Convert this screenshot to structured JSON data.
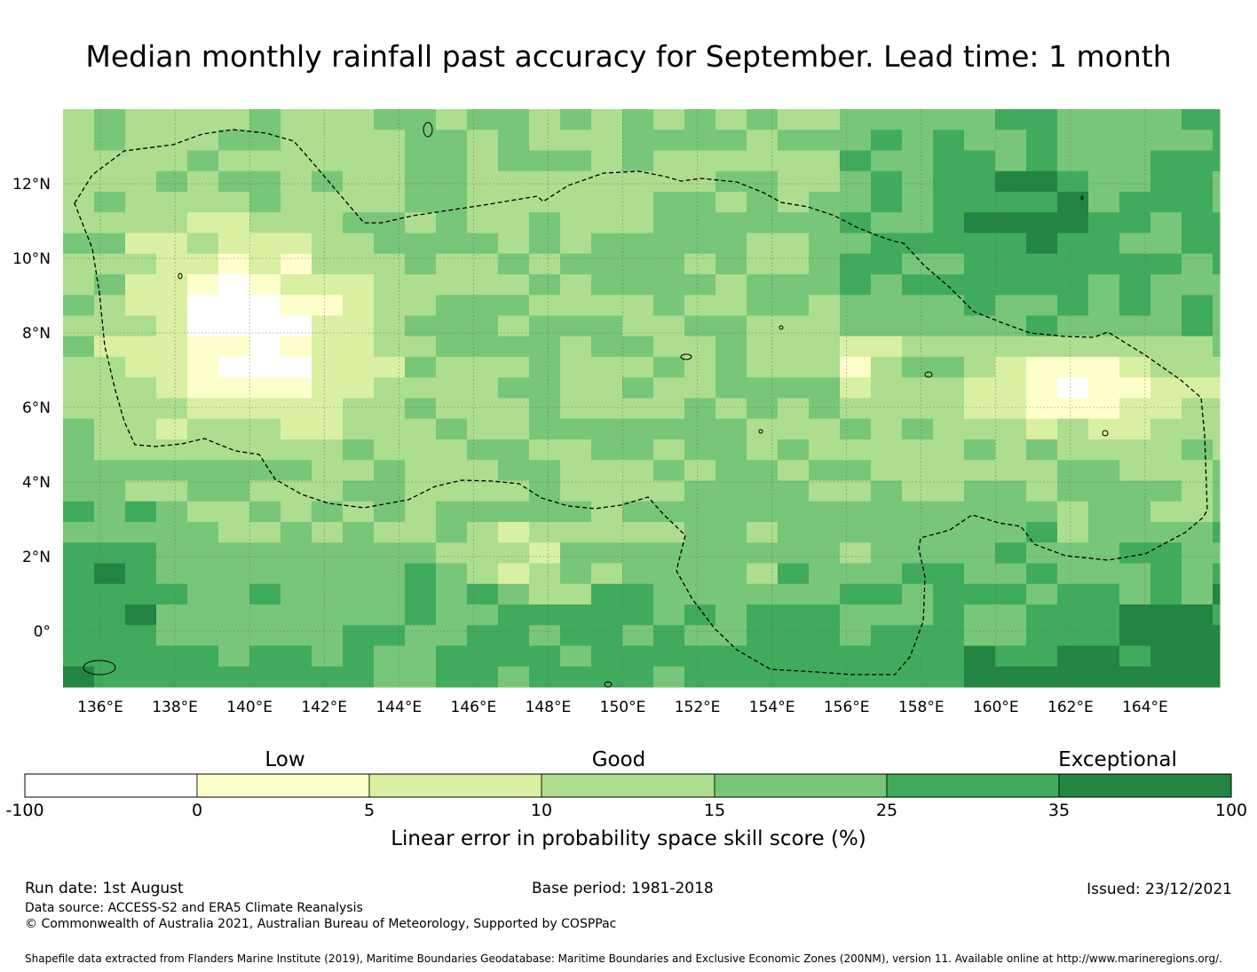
{
  "title": "Median monthly rainfall past accuracy for September. Lead time: 1 month",
  "map": {
    "lon_labels": [
      "136°E",
      "138°E",
      "140°E",
      "142°E",
      "144°E",
      "146°E",
      "148°E",
      "150°E",
      "152°E",
      "154°E",
      "156°E",
      "158°E",
      "160°E",
      "162°E",
      "164°E"
    ],
    "lat_labels": [
      "12°N",
      "10°N",
      "8°N",
      "6°N",
      "4°N",
      "2°N",
      "0°"
    ],
    "lon_range": [
      135.0,
      166.0
    ],
    "lat_range": [
      -1.5,
      14.0
    ],
    "grid": "on",
    "boundary_style": "dashed"
  },
  "colorbar": {
    "categories": [
      {
        "label": "Low",
        "position": 2.5
      },
      {
        "label": "Good",
        "position": 3.5
      },
      {
        "label": "Exceptional",
        "position": 6.35
      }
    ],
    "ticks": [
      "-100",
      "0",
      "5",
      "10",
      "15",
      "25",
      "35",
      "100"
    ],
    "colors": [
      "#ffffff",
      "#ffffcc",
      "#d9f0a3",
      "#addd8e",
      "#78c679",
      "#41ab5d",
      "#238443"
    ],
    "label": "Linear error in probability space skill score (%)"
  },
  "footer": {
    "run_date": "Run date: 1st August",
    "base_period": "Base period: 1981-2018",
    "issued": "Issued: 23/12/2021",
    "data_source": "Data source: ACCESS-S2 and ERA5 Climate Reanalysis",
    "copyright": "© Commonwealth of Australia 2021, Australian Bureau of Meteorology, Supported by COSPPac",
    "shapefile": "Shapefile data extracted from Flanders Marine Institute (2019), Maritime Boundaries Geodatabase: Maritime Boundaries and Exclusive Economic Zones (200NM), version 11. Available online at http://www.marineregions.org/."
  }
}
